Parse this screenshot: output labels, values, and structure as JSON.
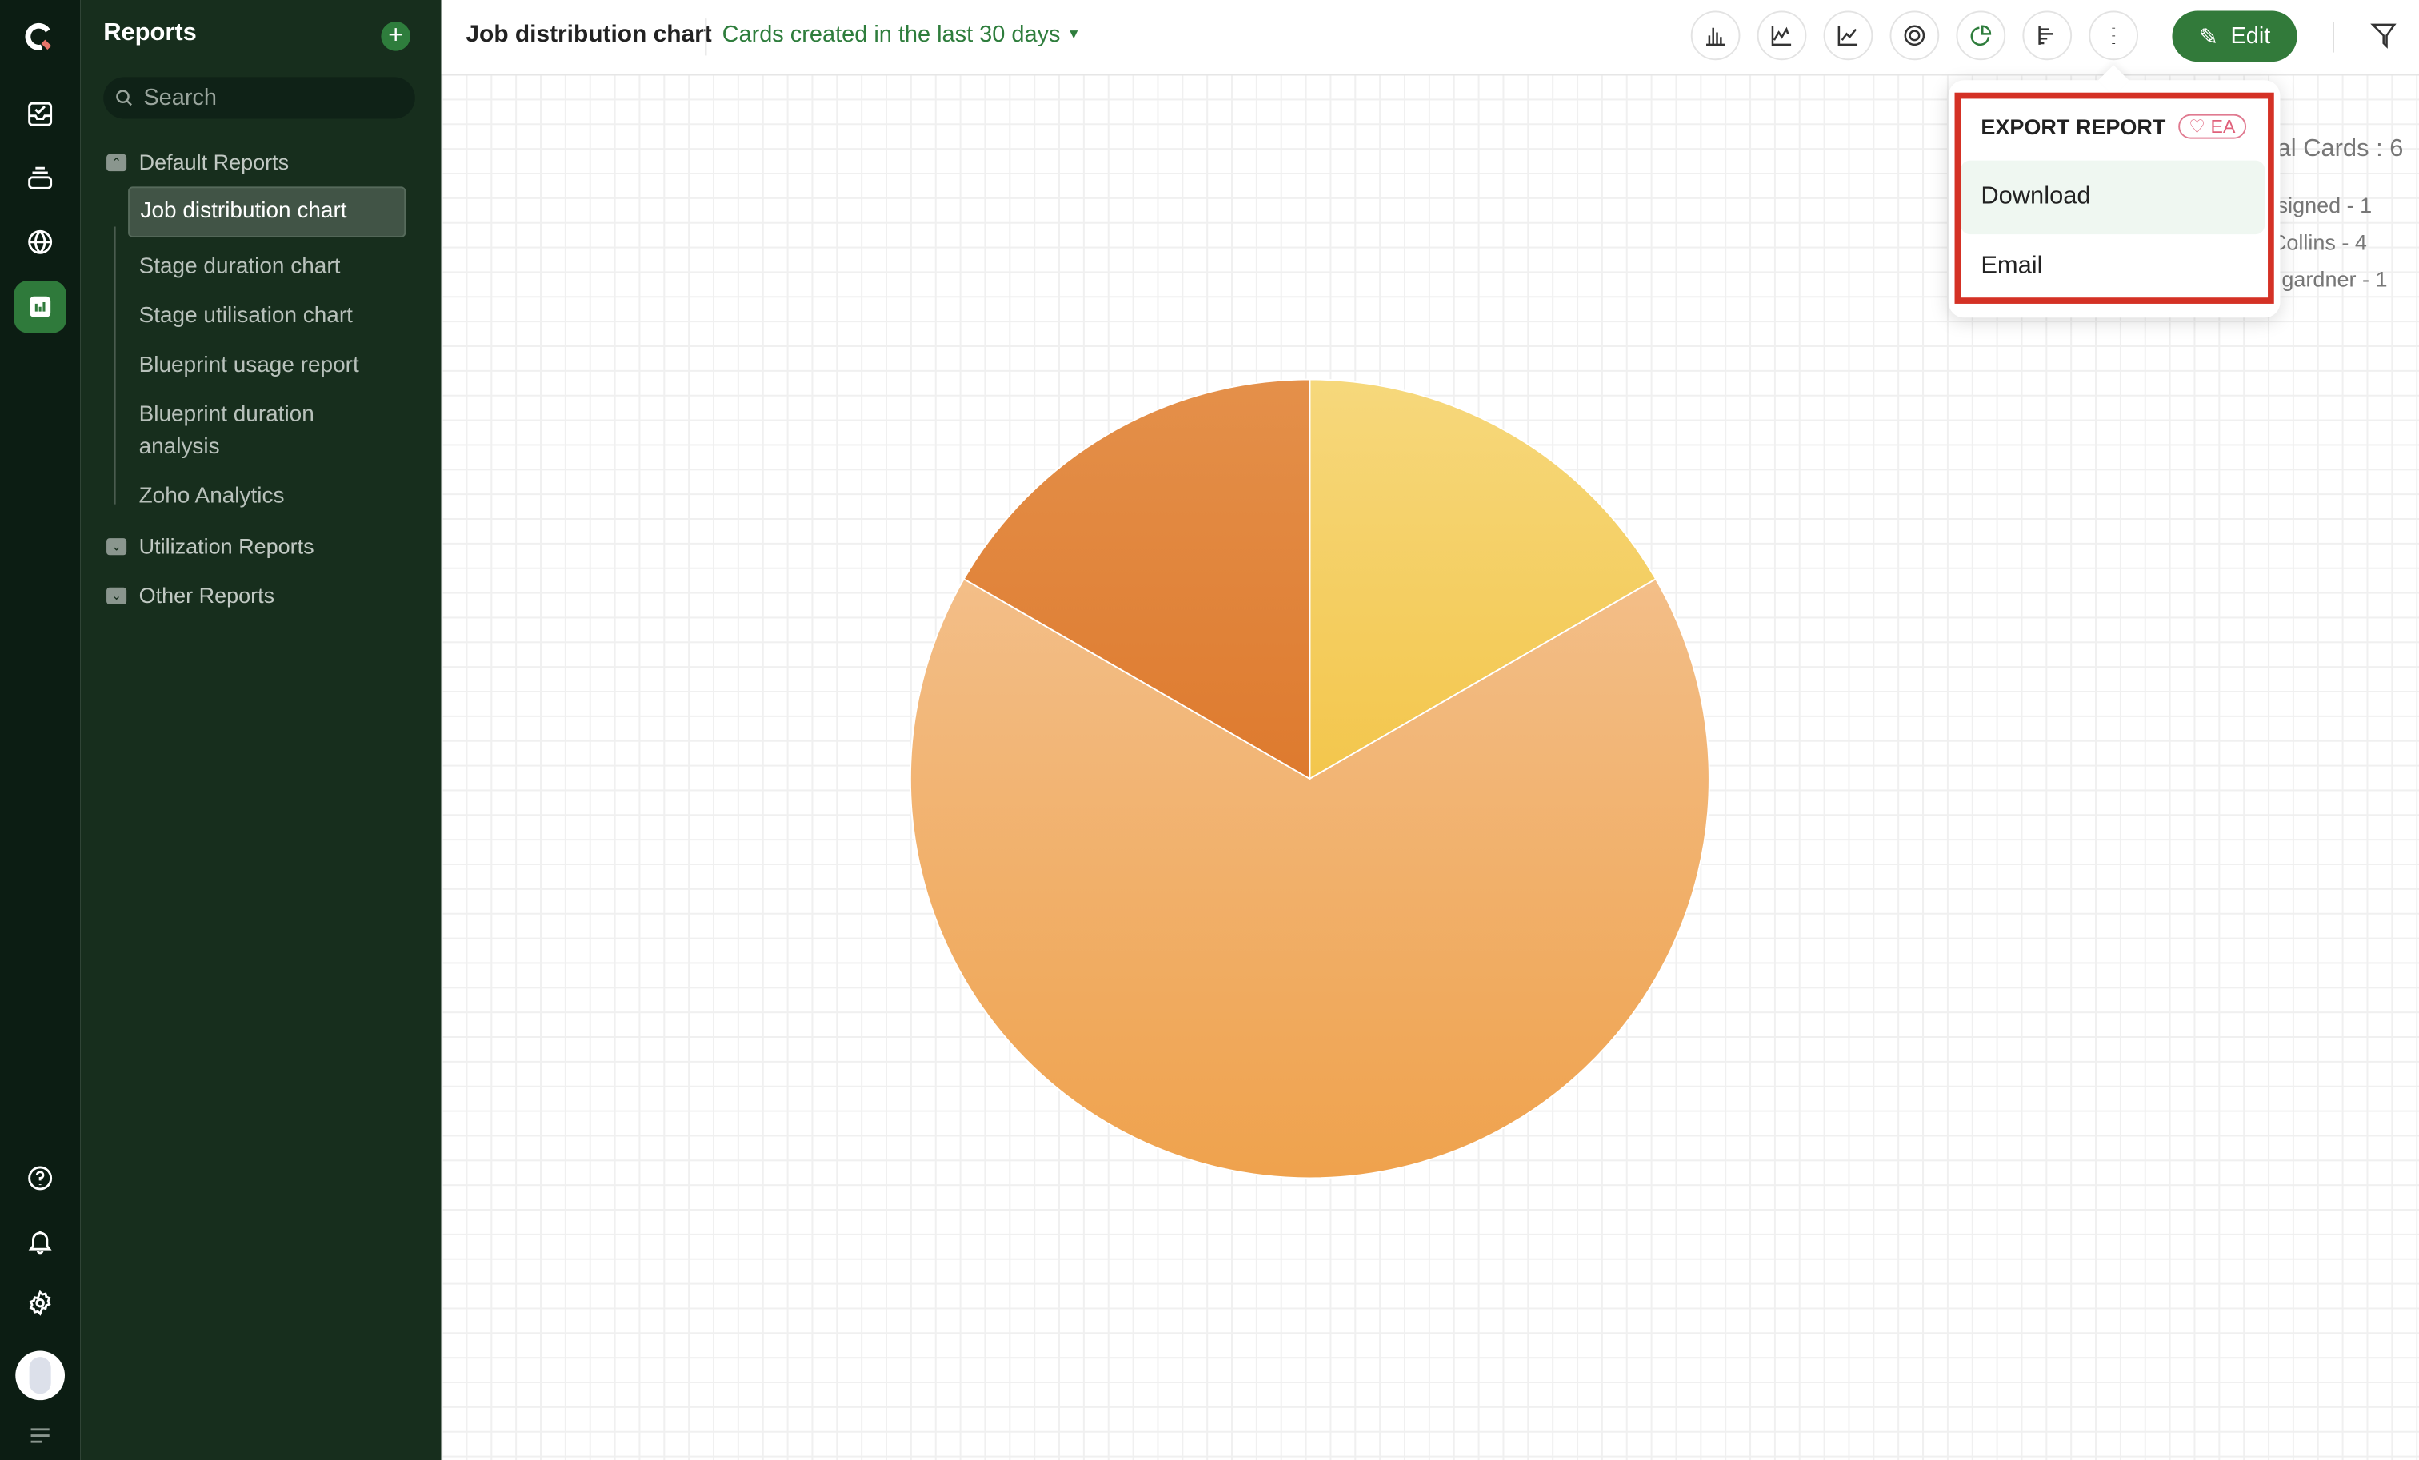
{
  "sidebar": {
    "title": "Reports",
    "search_placeholder": "Search",
    "folders": [
      {
        "label": "Default Reports"
      },
      {
        "label": "Utilization Reports"
      },
      {
        "label": "Other Reports"
      }
    ],
    "items": [
      {
        "label": "Job distribution chart"
      },
      {
        "label": "Stage duration chart"
      },
      {
        "label": "Stage utilisation chart"
      },
      {
        "label": "Blueprint usage report"
      },
      {
        "label": "Blueprint duration analysis"
      },
      {
        "label": "Zoho Analytics"
      }
    ]
  },
  "header": {
    "title": "Job distribution chart",
    "filter": "Cards created in the last 30 days",
    "edit_label": "Edit"
  },
  "export_menu": {
    "title": "EXPORT REPORT",
    "badge": "EA",
    "items": [
      {
        "label": "Download"
      },
      {
        "label": "Email"
      }
    ]
  },
  "legend": {
    "total": "al Cards : 6",
    "entries": [
      "signed - 1",
      "Collins - 4",
      "gardner - 1"
    ]
  },
  "chart_data": {
    "type": "pie",
    "values": [
      1,
      4,
      1
    ],
    "total": 6,
    "colors": [
      [
        "#f6d87c",
        "#f3c64c"
      ],
      [
        "#f3be88",
        "#efa24d"
      ],
      [
        "#e4904a",
        "#de7a2e"
      ]
    ]
  },
  "colors": {
    "accent": "#327a3a",
    "highlight": "#d43125"
  }
}
